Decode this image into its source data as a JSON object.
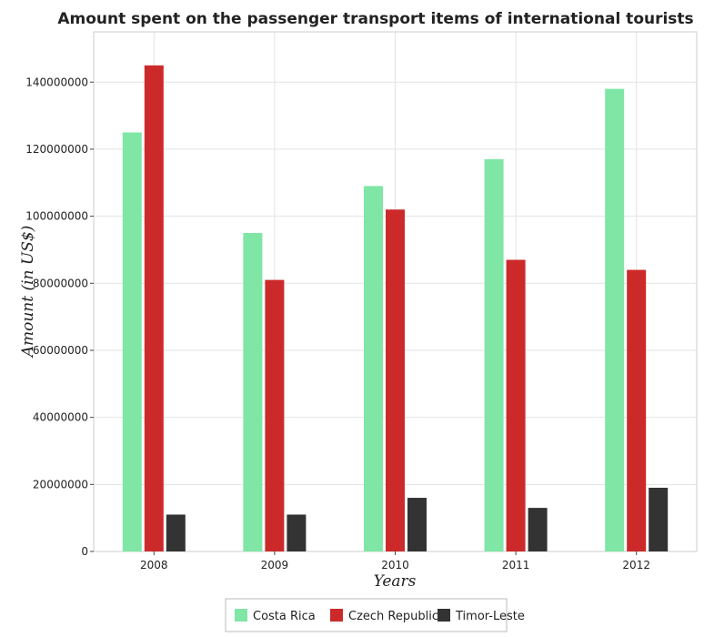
{
  "chart_data": {
    "type": "bar",
    "title": "Amount spent on the passenger transport items of international tourists",
    "xlabel": "Years",
    "ylabel": "Amount (in US$)",
    "categories": [
      "2008",
      "2009",
      "2010",
      "2011",
      "2012"
    ],
    "ylim": [
      0,
      155000000
    ],
    "yticks": [
      0,
      20000000,
      40000000,
      60000000,
      80000000,
      100000000,
      120000000,
      140000000
    ],
    "ytick_labels": [
      "0",
      "20000000",
      "40000000",
      "60000000",
      "80000000",
      "100000000",
      "120000000",
      "140000000"
    ],
    "grid": true,
    "legend_position": "bottom",
    "series": [
      {
        "name": "Costa Rica",
        "color": "#7FE6A6",
        "values": [
          125000000,
          95000000,
          109000000,
          117000000,
          138000000
        ]
      },
      {
        "name": "Czech Republic",
        "color": "#CC2A2A",
        "values": [
          145000000,
          81000000,
          102000000,
          87000000,
          84000000
        ]
      },
      {
        "name": "Timor-Leste",
        "color": "#333333",
        "values": [
          11000000,
          11000000,
          16000000,
          13000000,
          19000000
        ]
      }
    ]
  }
}
